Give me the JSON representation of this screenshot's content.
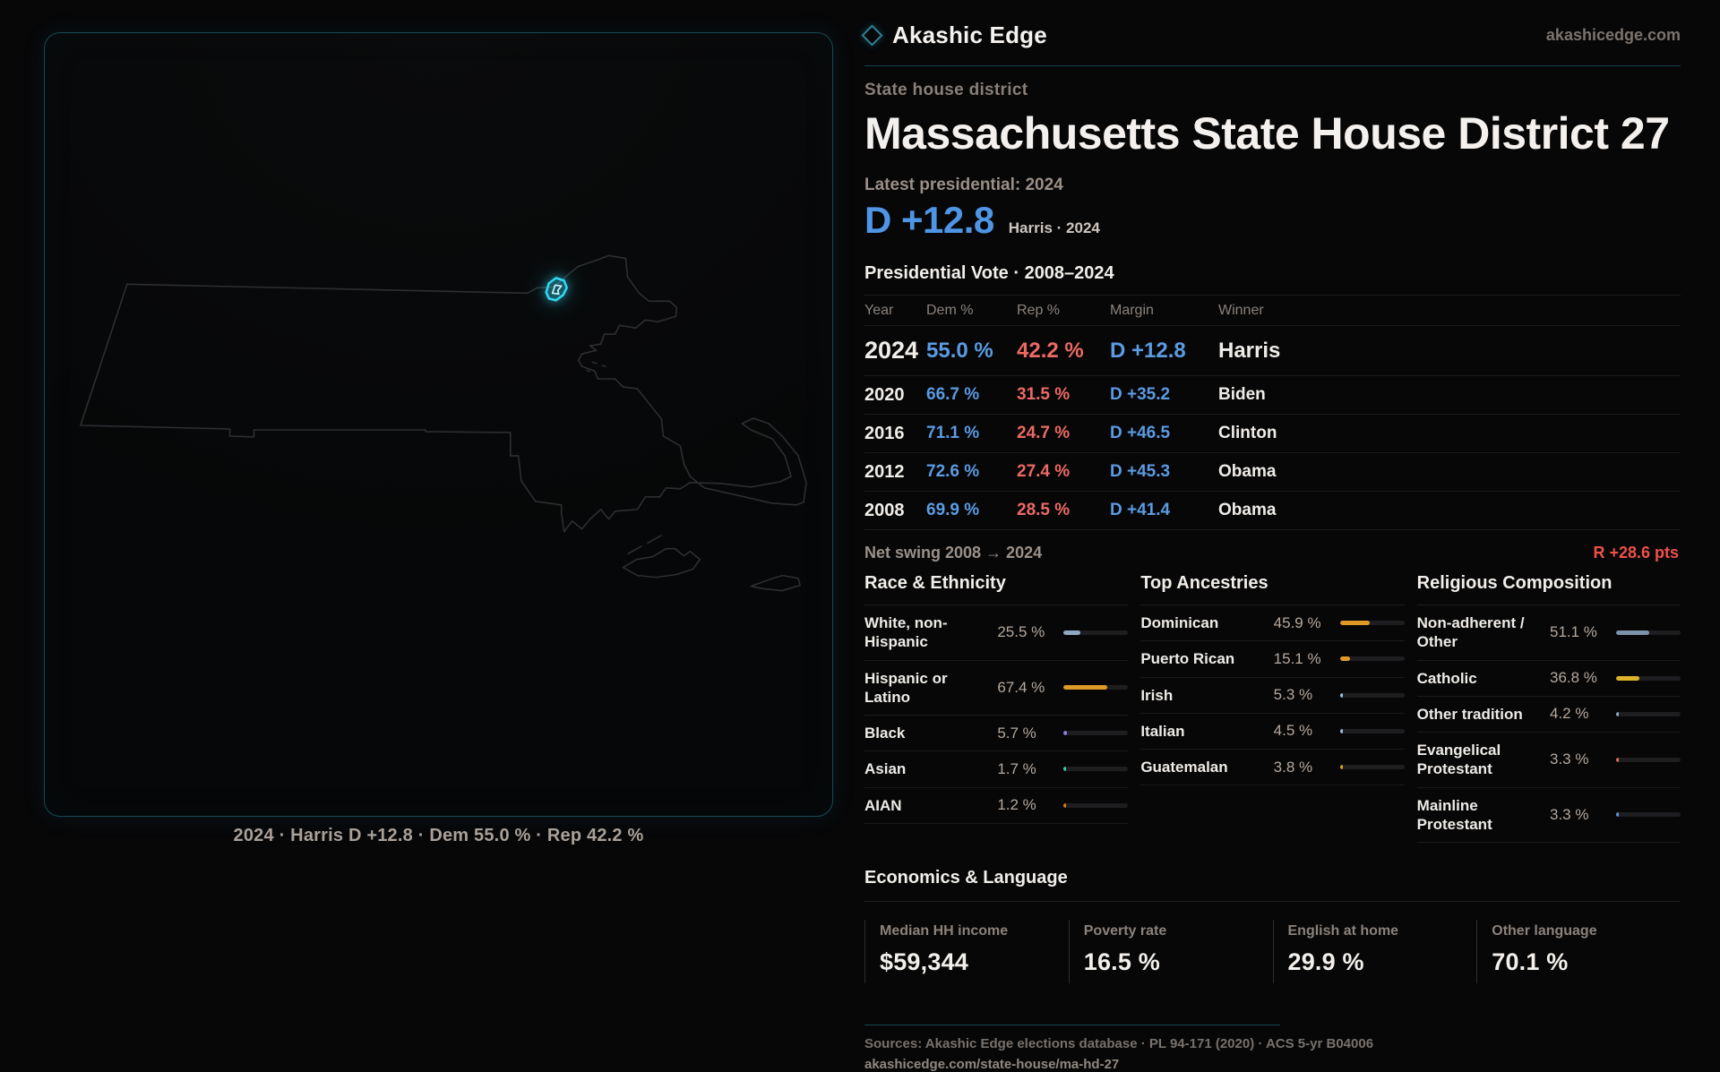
{
  "brand": {
    "name": "Akashic Edge",
    "domain": "akashicedge.com"
  },
  "page": {
    "eyebrow": "State house district",
    "title": "Massachusetts State House District 27",
    "latest_label": "Latest presidential: 2024",
    "margin_value": "D +12.8",
    "margin_sub": "Harris · 2024"
  },
  "map": {
    "caption": "2024 · Harris D +12.8 · Dem 55.0 % · Rep 42.2 %",
    "district_color": "#33d6f2",
    "outline_color": "#2d2e31"
  },
  "chart_data": {
    "type": "table",
    "title": "Presidential Vote · 2008–2024",
    "headers": [
      "Year",
      "Dem %",
      "Rep %",
      "Margin",
      "Winner"
    ],
    "rows": [
      {
        "year": "2024",
        "dem": "55.0 %",
        "rep": "42.2 %",
        "margin": "D +12.8",
        "winner": "Harris",
        "featured": true
      },
      {
        "year": "2020",
        "dem": "66.7 %",
        "rep": "31.5 %",
        "margin": "D +35.2",
        "winner": "Biden",
        "featured": false
      },
      {
        "year": "2016",
        "dem": "71.1 %",
        "rep": "24.7 %",
        "margin": "D +46.5",
        "winner": "Clinton",
        "featured": false
      },
      {
        "year": "2012",
        "dem": "72.6 %",
        "rep": "27.4 %",
        "margin": "D +45.3",
        "winner": "Obama",
        "featured": false
      },
      {
        "year": "2008",
        "dem": "69.9 %",
        "rep": "28.5 %",
        "margin": "D +41.4",
        "winner": "Obama",
        "featured": false
      }
    ],
    "net_swing_label": "Net swing 2008 → 2024",
    "net_swing_value": "R +28.6 pts"
  },
  "demographics": {
    "race": {
      "title": "Race & Ethnicity",
      "rows": [
        {
          "label": "White, non-Hispanic",
          "value": "25.5 %",
          "pct": 25.5,
          "color": "#8fa8c4"
        },
        {
          "label": "Hispanic or Latino",
          "value": "67.4 %",
          "pct": 67.4,
          "color": "#df9a26"
        },
        {
          "label": "Black",
          "value": "5.7 %",
          "pct": 5.7,
          "color": "#8b7ae0"
        },
        {
          "label": "Asian",
          "value": "1.7 %",
          "pct": 1.7,
          "color": "#3fc9a6"
        },
        {
          "label": "AIAN",
          "value": "1.2 %",
          "pct": 1.2,
          "color": "#d97a1e"
        }
      ]
    },
    "ancestries": {
      "title": "Top Ancestries",
      "rows": [
        {
          "label": "Dominican",
          "value": "45.9 %",
          "pct": 45.9,
          "color": "#df9a26"
        },
        {
          "label": "Puerto Rican",
          "value": "15.1 %",
          "pct": 15.1,
          "color": "#df9a26"
        },
        {
          "label": "Irish",
          "value": "5.3 %",
          "pct": 5.3,
          "color": "#9fc2e0"
        },
        {
          "label": "Italian",
          "value": "4.5 %",
          "pct": 4.5,
          "color": "#9fc2e0"
        },
        {
          "label": "Guatemalan",
          "value": "3.8 %",
          "pct": 3.8,
          "color": "#dfa126"
        }
      ]
    },
    "religion": {
      "title": "Religious Composition",
      "rows": [
        {
          "label": "Non-adherent / Other",
          "value": "51.1 %",
          "pct": 51.1,
          "color": "#7e93ab"
        },
        {
          "label": "Catholic",
          "value": "36.8 %",
          "pct": 36.8,
          "color": "#ddb427"
        },
        {
          "label": "Other tradition",
          "value": "4.2 %",
          "pct": 4.2,
          "color": "#93a7bd"
        },
        {
          "label": "Evangelical Protestant",
          "value": "3.3 %",
          "pct": 3.3,
          "color": "#e06a62"
        },
        {
          "label": "Mainline Protestant",
          "value": "3.3 %",
          "pct": 3.3,
          "color": "#5b96dd"
        }
      ]
    }
  },
  "economics": {
    "title": "Economics & Language",
    "stats": [
      {
        "label": "Median HH income",
        "value": "$59,344"
      },
      {
        "label": "Poverty rate",
        "value": "16.5 %"
      },
      {
        "label": "English at home",
        "value": "29.9 %"
      },
      {
        "label": "Other language",
        "value": "70.1 %"
      }
    ]
  },
  "footer": {
    "sources": "Sources: Akashic Edge elections database · PL 94-171 (2020) · ACS 5-yr B04006",
    "permalink": "akashicedge.com/state-house/ma-hd-27"
  }
}
